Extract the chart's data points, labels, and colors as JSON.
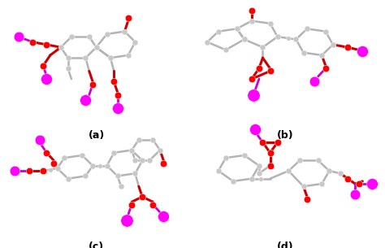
{
  "figure_width": 4.74,
  "figure_height": 3.05,
  "dpi": 100,
  "background_color": "#ffffff",
  "labels": [
    "(a)",
    "(b)",
    "(c)",
    "(d)"
  ],
  "label_fontsize": 9,
  "label_style": "bold",
  "atom_gray": "#c8c8c8",
  "atom_red": "#ff0000",
  "atom_magenta": "#ff00ff",
  "bond_gray": "#b4b4b4",
  "bond_red": "#cc0000",
  "bond_magenta": "#cc00cc"
}
